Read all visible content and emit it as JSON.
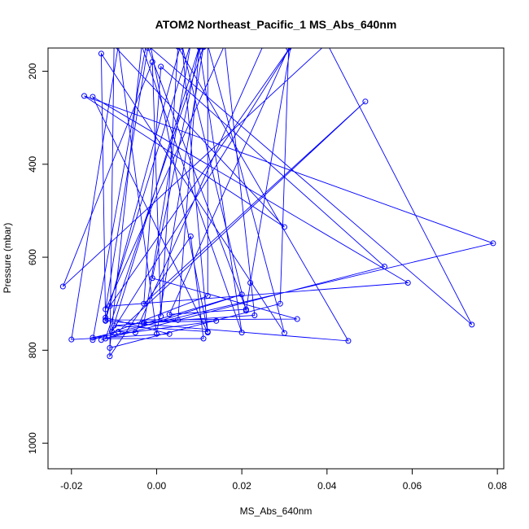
{
  "chart_data": {
    "type": "line",
    "title": "ATOM2 Northeast_Pacific_1 MS_Abs_640nm",
    "xlabel": "MS_Abs_640nm",
    "ylabel": "Pressure (mbar)",
    "xlim": [
      -0.0255,
      0.0815
    ],
    "ylim": [
      1055,
      150
    ],
    "y_reversed": true,
    "x_ticks": [
      -0.02,
      0.0,
      0.02,
      0.04,
      0.06,
      0.08
    ],
    "x_tick_labels": [
      "-0.02",
      "0.00",
      "0.02",
      "0.04",
      "0.06",
      "0.08"
    ],
    "y_ticks": [
      200,
      400,
      600,
      800,
      1000
    ],
    "y_tick_labels": [
      "200",
      "400",
      "600",
      "800",
      "1000"
    ],
    "grid": false,
    "legend": "none",
    "marker": "open-circle",
    "series": [
      {
        "color": "#0000ff",
        "points": [
          [
            0.011,
            148
          ],
          [
            -0.002,
            150
          ],
          [
            0.021,
            712
          ],
          [
            0.003,
            723
          ],
          [
            0.031,
            150
          ],
          [
            0.029,
            700
          ],
          [
            -0.011,
            795
          ],
          [
            -0.0035,
            145
          ],
          [
            0.02,
            762
          ],
          [
            0.01,
            147
          ],
          [
            0.005,
            735
          ],
          [
            -0.01,
            747
          ],
          [
            0.012,
            760
          ],
          [
            -0.002,
            120
          ],
          [
            -0.015,
            778
          ],
          [
            0.012,
            683
          ],
          [
            0.012,
            143
          ],
          [
            0.03,
            763
          ],
          [
            -0.013,
            162
          ],
          [
            -0.012,
            735
          ],
          [
            0.033,
            733
          ],
          [
            -0.001,
            645
          ],
          [
            0.01,
            148
          ],
          [
            -0.0105,
            760
          ],
          [
            0.032,
            140
          ],
          [
            -0.011,
            705
          ],
          [
            0.059,
            655
          ],
          [
            -0.015,
            255
          ],
          [
            0.012,
            762
          ],
          [
            0.006,
            145
          ],
          [
            0.021,
            715
          ],
          [
            0.022,
            655
          ],
          [
            0.0315,
            145
          ],
          [
            0.0055,
            148
          ],
          [
            -0.012,
            737
          ],
          [
            0.045,
            780
          ],
          [
            0.005,
            147
          ],
          [
            0.001,
            727
          ],
          [
            -0.001,
            180
          ],
          [
            -0.022,
            663
          ],
          [
            0.04,
            140
          ],
          [
            0.074,
            745
          ],
          [
            -0.002,
            145
          ],
          [
            -0.012,
            712
          ],
          [
            0.016,
            143
          ],
          [
            0.023,
            725
          ],
          [
            -0.003,
            740
          ],
          [
            0.014,
            737
          ],
          [
            -0.015,
            773
          ],
          [
            0.079,
            570
          ],
          [
            -0.017,
            253
          ],
          [
            0.03,
            535
          ],
          [
            -0.01,
            145
          ],
          [
            -0.011,
            813
          ],
          [
            0.008,
            555
          ],
          [
            0.011,
            775
          ],
          [
            -0.012,
            775
          ],
          [
            0.011,
            147
          ],
          [
            0.0,
            765
          ],
          [
            -0.009,
            145
          ],
          [
            -0.02,
            777
          ],
          [
            0.003,
            765
          ],
          [
            -0.012,
            730
          ],
          [
            0.008,
            140
          ],
          [
            -0.003,
            743
          ],
          [
            0.02,
            680
          ],
          [
            -0.013,
            778
          ],
          [
            0.0535,
            620
          ],
          [
            0.001,
            190
          ],
          [
            -0.003,
            700
          ],
          [
            0.049,
            265
          ],
          [
            -0.009,
            760
          ],
          [
            -0.005,
            762
          ],
          [
            0.025,
            145
          ]
        ]
      }
    ]
  }
}
